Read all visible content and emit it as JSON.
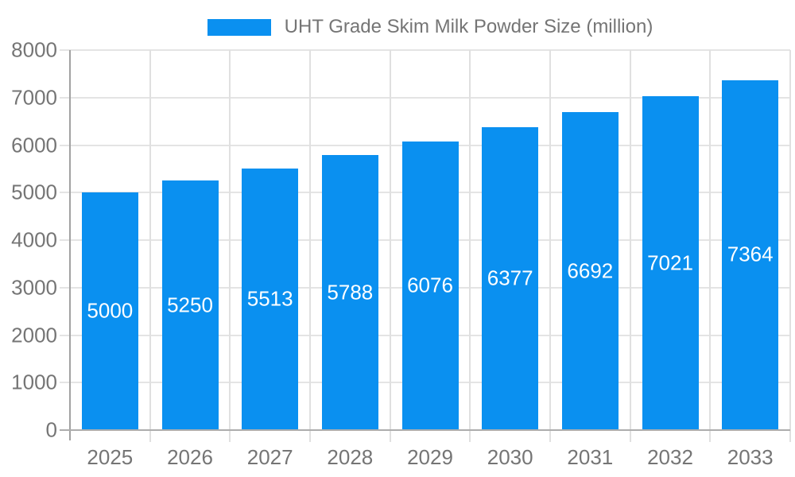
{
  "chart_data": {
    "type": "bar",
    "categories": [
      "2025",
      "2026",
      "2027",
      "2028",
      "2029",
      "2030",
      "2031",
      "2032",
      "2033"
    ],
    "values": [
      5000,
      5250,
      5513,
      5788,
      6076,
      6377,
      6692,
      7021,
      7364
    ],
    "title": "UHT Grade Skim Milk Powder Size (million)",
    "xlabel": "",
    "ylabel": "",
    "ylim": [
      0,
      8000
    ],
    "ytick_step": 1000,
    "grid": true,
    "legend_position": "top",
    "legend_entries": [
      "UHT Grade Skim Milk Powder Size (million)"
    ],
    "bar_color": "#0a90f0",
    "value_label_color": "#ffffff",
    "axis_text_color": "#757575",
    "gridline_color": "#e4e4e4",
    "axis_line_color": "#a2a2a2"
  },
  "legend": {
    "label": "UHT Grade Skim Milk Powder Size (million)"
  }
}
